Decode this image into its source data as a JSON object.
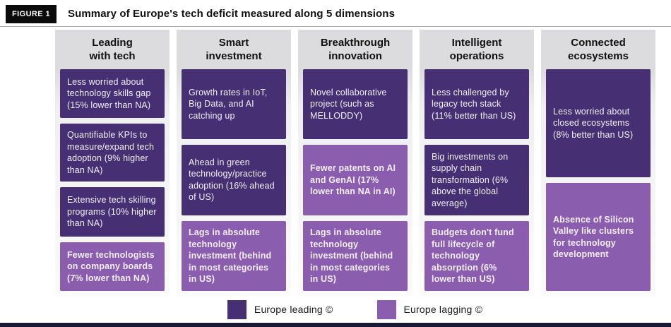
{
  "figure": {
    "badge": "FIGURE 1",
    "title": "Summary of Europe's tech deficit measured along 5 dimensions"
  },
  "colors": {
    "leading": "#462f72",
    "lagging": "#8a5dae",
    "badge_bg": "#0b0b0b",
    "header_bg": "#dcdcde",
    "bottom_bar": "#191935"
  },
  "columns": [
    {
      "header": "Leading\nwith tech",
      "cards": [
        {
          "text": "Less worried about technology skills gap (15% lower than NA)",
          "status": "leading"
        },
        {
          "text": "Quantifiable KPIs to measure/expand tech adoption (9% higher than NA)",
          "status": "leading"
        },
        {
          "text": "Extensive tech skilling programs (10% higher than NA)",
          "status": "leading"
        },
        {
          "text": "Fewer technologists on company boards (7% lower than NA)",
          "status": "lagging"
        }
      ]
    },
    {
      "header": "Smart\ninvestment",
      "cards": [
        {
          "text": "Growth rates in IoT, Big Data, and AI catching up",
          "status": "leading"
        },
        {
          "text": "Ahead in green technology/practice adoption (16% ahead of US)",
          "status": "leading"
        },
        {
          "text": "Lags in absolute technology investment (behind in most categories in US)",
          "status": "lagging"
        }
      ]
    },
    {
      "header": "Breakthrough\ninnovation",
      "cards": [
        {
          "text": "Novel collaborative project (such as MELLODDY)",
          "status": "leading"
        },
        {
          "text": "Fewer patents on AI and GenAI (17% lower than NA in AI)",
          "status": "lagging"
        },
        {
          "text": "Lags in absolute technology investment (behind in most categories in US)",
          "status": "lagging"
        }
      ]
    },
    {
      "header": "Intelligent\noperations",
      "cards": [
        {
          "text": "Less challenged by legacy tech stack (11% better than US)",
          "status": "leading"
        },
        {
          "text": "Big investments on supply chain transformation (6% above the global average)",
          "status": "leading"
        },
        {
          "text": "Budgets don't fund full lifecycle of technology absorption (6% lower than US)",
          "status": "lagging"
        }
      ]
    },
    {
      "header": "Connected\necosystems",
      "cards": [
        {
          "text": "Less worried about closed ecosystems (8% better than US)",
          "status": "leading"
        },
        {
          "text": "Absence of Silicon Valley like clusters for technology development",
          "status": "lagging"
        }
      ]
    }
  ],
  "legend": [
    {
      "label": "Europe leading ©",
      "status": "leading"
    },
    {
      "label": "Europe lagging ©",
      "status": "lagging"
    }
  ]
}
